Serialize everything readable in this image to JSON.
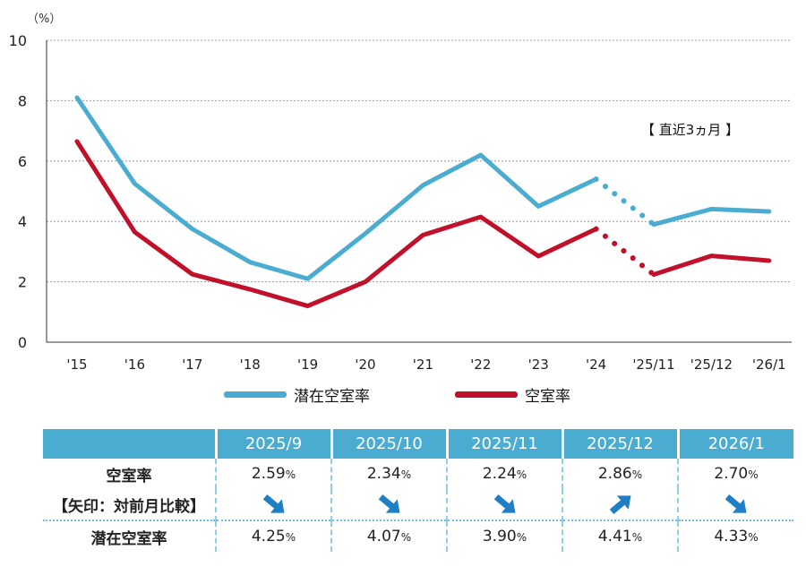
{
  "chart_data": {
    "type": "line",
    "unit_label": "（%）",
    "categories": [
      "'15",
      "'16",
      "'17",
      "'18",
      "'19",
      "'20",
      "'21",
      "'22",
      "'23",
      "'24",
      "'25/11",
      "'25/12",
      "'26/1"
    ],
    "yticks": [
      "0",
      "2",
      "4",
      "6",
      "8",
      "10"
    ],
    "ylim": [
      0,
      10
    ],
    "annotation": "【 直近3ヵ月 】",
    "series": [
      {
        "name": "潜在空室率",
        "color": "#4aacd0",
        "values": [
          8.1,
          5.25,
          3.75,
          2.65,
          2.1,
          3.6,
          5.2,
          6.2,
          4.5,
          5.4,
          3.9,
          4.41,
          4.33
        ]
      },
      {
        "name": "空室率",
        "color": "#c0102a",
        "values": [
          6.65,
          3.65,
          2.25,
          1.75,
          1.2,
          2.0,
          3.55,
          4.15,
          2.85,
          3.75,
          2.24,
          2.86,
          2.7
        ]
      }
    ],
    "dotted_between": [
      9,
      10
    ]
  },
  "table": {
    "months": [
      "2025/9",
      "2025/10",
      "2025/11",
      "2025/12",
      "2026/1"
    ],
    "vacancy_label": "空室率",
    "arrow_note": "【矢印：対前月比較】",
    "potential_label": "潜在空室率",
    "vacancy": [
      {
        "num": "2.59",
        "pct": "%"
      },
      {
        "num": "2.34",
        "pct": "%"
      },
      {
        "num": "2.24",
        "pct": "%"
      },
      {
        "num": "2.86",
        "pct": "%"
      },
      {
        "num": "2.70",
        "pct": "%"
      }
    ],
    "arrows": [
      "down",
      "down",
      "down",
      "up",
      "down"
    ],
    "potential": [
      {
        "num": "4.25",
        "pct": "%"
      },
      {
        "num": "4.07",
        "pct": "%"
      },
      {
        "num": "3.90",
        "pct": "%"
      },
      {
        "num": "4.41",
        "pct": "%"
      },
      {
        "num": "4.33",
        "pct": "%"
      }
    ]
  }
}
